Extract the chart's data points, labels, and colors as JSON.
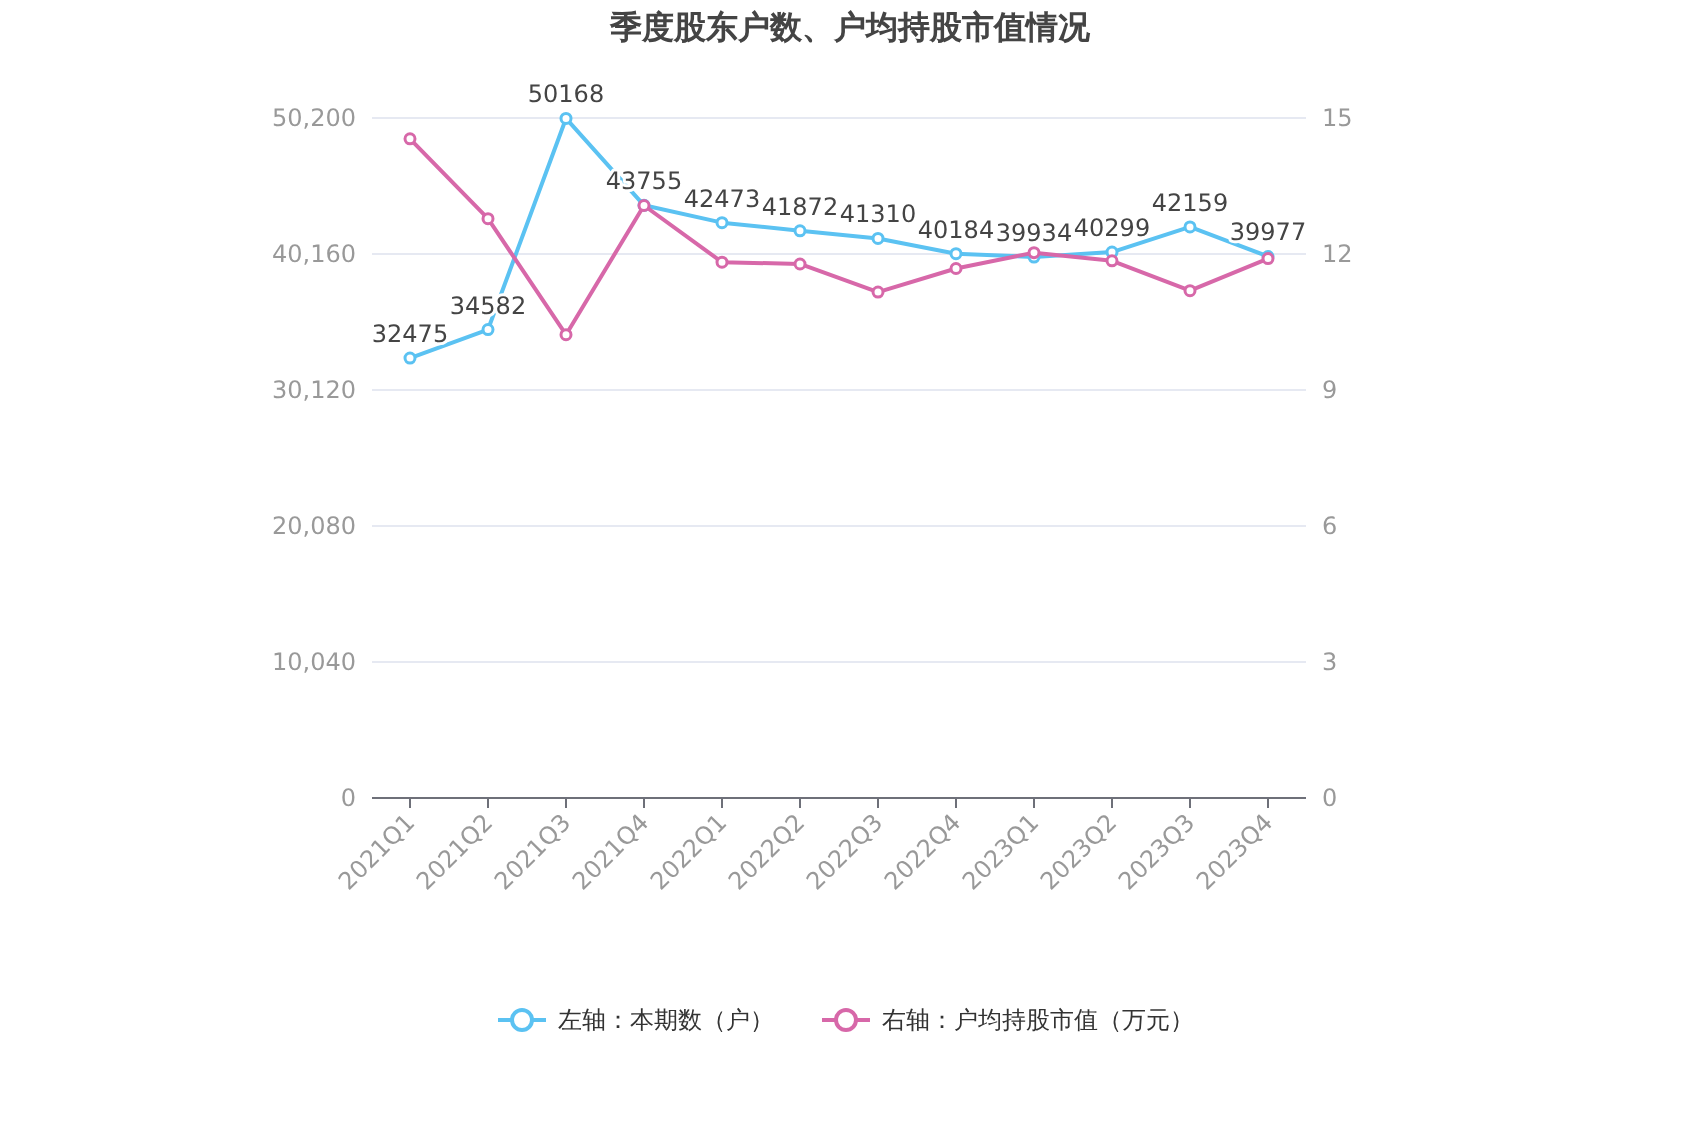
{
  "chart_data": {
    "type": "line",
    "title": "季度股东户数、户均持股市值情况",
    "categories": [
      "2021Q1",
      "2021Q2",
      "2021Q3",
      "2021Q4",
      "2022Q1",
      "2022Q2",
      "2022Q3",
      "2022Q4",
      "2023Q1",
      "2023Q2",
      "2023Q3",
      "2023Q4"
    ],
    "series": [
      {
        "name": "左轴：本期数（户）",
        "color": "#5bc2f2",
        "values": [
          32475,
          34582,
          50168,
          43755,
          42473,
          41872,
          41310,
          40184,
          39934,
          40299,
          42159,
          39977
        ],
        "value_labels": [
          "32475",
          "34582",
          "50168",
          "43755",
          "42473",
          "41872",
          "41310",
          "40184",
          "39934",
          "40299",
          "42159",
          "39977"
        ]
      },
      {
        "name": "右轴：户均持股市值（万元）",
        "color": "#d768a9",
        "axis": "y2",
        "values": [
          14.54,
          12.78,
          10.22,
          13.07,
          11.82,
          11.78,
          11.16,
          11.68,
          12.03,
          11.85,
          11.19,
          11.9
        ]
      }
    ],
    "ylim": [
      0,
      50200
    ],
    "yticks": [
      0,
      {
        "value": 10040,
        "label": "10,040"
      },
      {
        "value": 20080,
        "label": "20,080"
      },
      {
        "value": 30120,
        "label": "30,120"
      },
      {
        "value": 40160,
        "label": "40,160"
      },
      {
        "value": 50200,
        "label": "50,200"
      }
    ],
    "y2lim": [
      0,
      15
    ],
    "y2ticks": [
      0,
      3,
      6,
      9,
      12,
      15
    ],
    "grid": "y",
    "legend": "bottom",
    "marker": "circle",
    "line_style": "solid"
  }
}
